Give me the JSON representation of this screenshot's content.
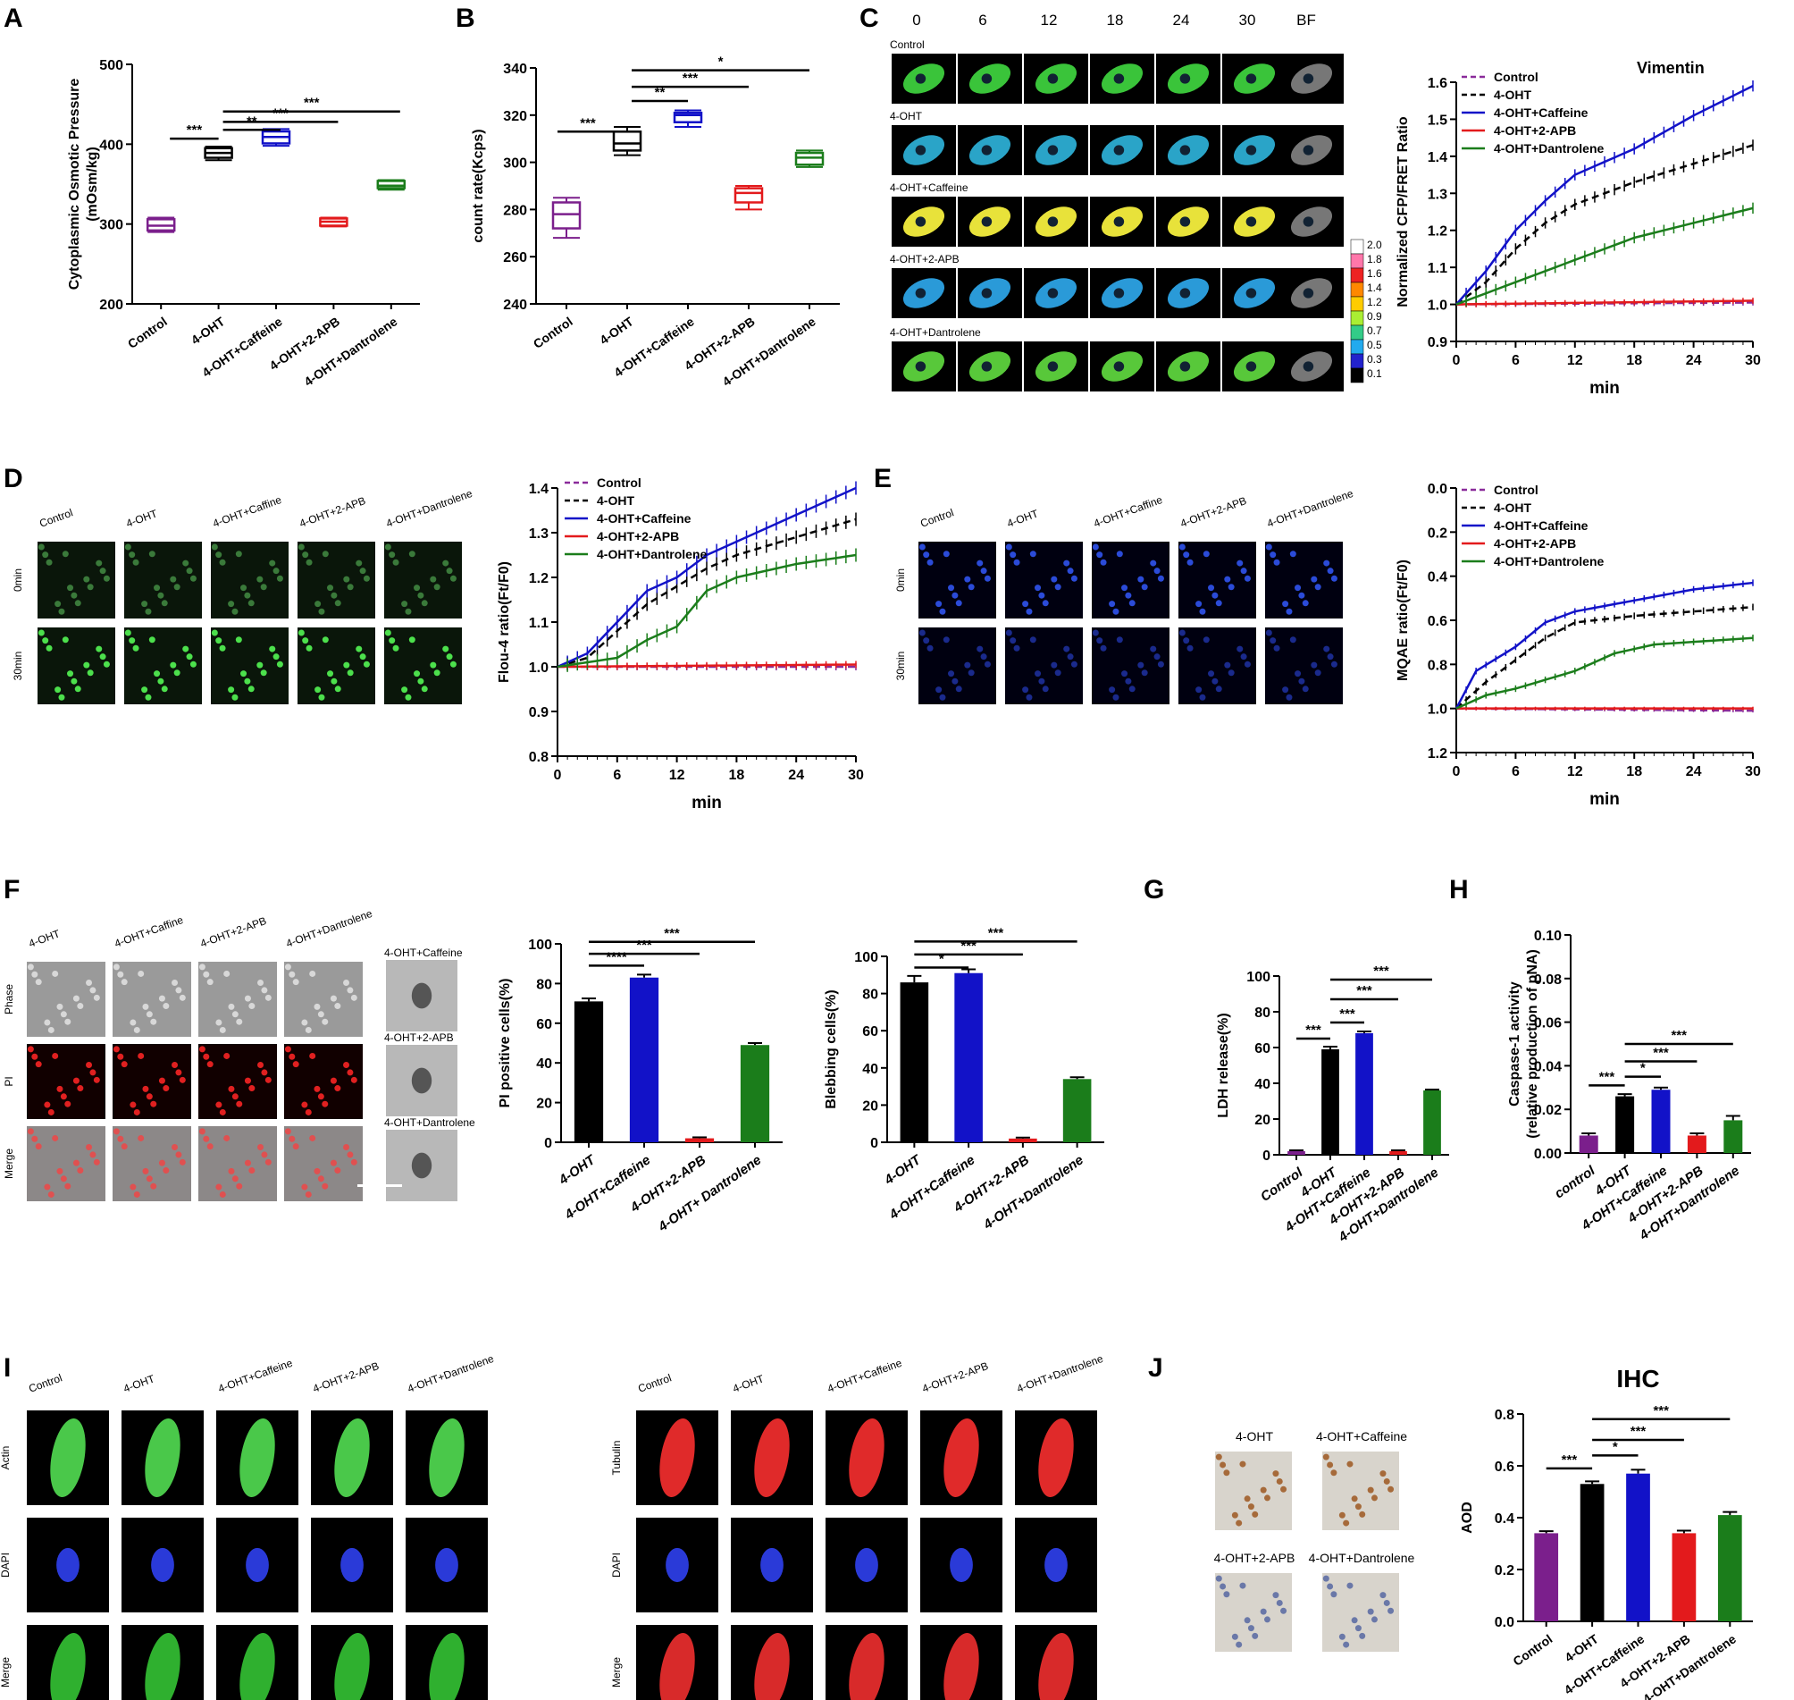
{
  "panel_labels": [
    "A",
    "B",
    "C",
    "D",
    "E",
    "F",
    "G",
    "H",
    "I",
    "J"
  ],
  "colors": {
    "purple": "#7b1f8c",
    "black": "#000000",
    "blue": "#1212c8",
    "red": "#e31a1c",
    "green": "#1b7d1b",
    "dashpurple": "#8a2b9a"
  },
  "groups5": [
    "Control",
    "4-OHT",
    "4-OHT+Caffeine",
    "4-OHT+2-APB",
    "4-OHT+Dantrolene"
  ],
  "groups4_F": [
    "4-OHT",
    "4-OHT+Caffeine",
    "4-OHT+2-APB",
    "4-OHT+ Dantrolene"
  ],
  "groups4_F2": [
    "4-OHT",
    "4-OHT+Caffeine",
    "4-OHT+2-APB",
    "4-OHT+Dantrolene"
  ],
  "groups5_H": [
    "control",
    "4-OHT",
    "4-OHT+Caffeine",
    "4-OHT+2-APB",
    "4-OHT+Dantrolene"
  ],
  "legend": [
    "Control",
    "4-OHT",
    "4-OHT+Caffeine",
    "4-OHT+2-APB",
    "4-OHT+Dantrolene"
  ],
  "micro": {
    "C_times": [
      "0",
      "6",
      "12",
      "18",
      "24",
      "30",
      "BF"
    ],
    "C_rows": [
      "Control",
      "4-OHT",
      "4-OHT+Caffeine",
      "4-OHT+2-APB",
      "4-OHT+Dantrolene"
    ],
    "C_scale": [
      "2.0",
      "1.8",
      "1.6",
      "1.4",
      "1.2",
      "0.9",
      "0.7",
      "0.5",
      "0.3",
      "0.1"
    ],
    "D_cols": [
      "Control",
      "4-OHT",
      "4-OHT+Caffine",
      "4-OHT+2-APB",
      "4-OHT+Dantrolene"
    ],
    "D_rows": [
      "0min",
      "30min"
    ],
    "F_cols": [
      "4-OHT",
      "4-OHT+Caffine",
      "4-OHT+2-APB",
      "4-OHT+Dantrolene"
    ],
    "F_rows": [
      "Phase",
      "PI",
      "Merge"
    ],
    "F_insets": [
      "4-OHT+Caffeine",
      "4-OHT+2-APB",
      "4-OHT+Dantrolene"
    ],
    "I_cols": [
      "Control",
      "4-OHT",
      "4-OHT+Caffeine",
      "4-OHT+2-APB",
      "4-OHT+Dantrolene"
    ],
    "I_rows1": [
      "Actin",
      "DAPI",
      "Merge"
    ],
    "I_rows2": [
      "Tubulin",
      "DAPI",
      "Merge"
    ],
    "J_labels": [
      "4-OHT",
      "4-OHT+Caffeine",
      "4-OHT+2-APB",
      "4-OHT+Dantrolene"
    ]
  },
  "chart_data": [
    {
      "id": "A",
      "type": "box",
      "ylabel": "Cytoplasmic Osmotic Pressure\n(mOsm/kg)",
      "ylim": [
        200,
        500
      ],
      "yticks": [
        200,
        300,
        400,
        500
      ],
      "categories": [
        "Control",
        "4-OHT",
        "4-OHT+Caffeine",
        "4-OHT+2-APB",
        "4-OHT+Dantrolene"
      ],
      "boxes": [
        {
          "min": 290,
          "q1": 292,
          "med": 298,
          "q3": 306,
          "max": 308
        },
        {
          "min": 380,
          "q1": 383,
          "med": 389,
          "q3": 395,
          "max": 397
        },
        {
          "min": 398,
          "q1": 401,
          "med": 409,
          "q3": 416,
          "max": 419
        },
        {
          "min": 297,
          "q1": 298,
          "med": 303,
          "q3": 307,
          "max": 308
        },
        {
          "min": 343,
          "q1": 345,
          "med": 348,
          "q3": 354,
          "max": 355
        }
      ],
      "sig": [
        "***",
        "**",
        "***",
        "***"
      ]
    },
    {
      "id": "B",
      "type": "box",
      "ylabel": "count rate(Kcps)",
      "ylim": [
        240,
        340
      ],
      "yticks": [
        240,
        260,
        280,
        300,
        320,
        340
      ],
      "categories": [
        "Control",
        "4-OHT",
        "4-OHT+Caffeine",
        "4-OHT+2-APB",
        "4-OHT+Dantrolene"
      ],
      "boxes": [
        {
          "min": 268,
          "q1": 272,
          "med": 278,
          "q3": 283,
          "max": 285
        },
        {
          "min": 303,
          "q1": 305,
          "med": 308,
          "q3": 313,
          "max": 315
        },
        {
          "min": 315,
          "q1": 317,
          "med": 320,
          "q3": 321,
          "max": 322
        },
        {
          "min": 280,
          "q1": 283,
          "med": 287,
          "q3": 289,
          "max": 290
        },
        {
          "min": 298,
          "q1": 299,
          "med": 302,
          "q3": 304,
          "max": 305
        }
      ],
      "sig": [
        "***",
        "**",
        "***",
        "*"
      ]
    },
    {
      "id": "C",
      "type": "line",
      "title": "Vimentin",
      "xlabel": "min",
      "ylabel": "Normalized CFP/FRET Ratio",
      "xlim": [
        0,
        30
      ],
      "ylim": [
        0.9,
        1.6
      ],
      "xticks": [
        0,
        6,
        12,
        18,
        24,
        30
      ],
      "yticks": [
        0.9,
        1.0,
        1.1,
        1.2,
        1.3,
        1.4,
        1.5,
        1.6
      ],
      "series": [
        {
          "name": "Control",
          "k": [
            [
              0,
              1.0
            ],
            [
              30,
              1.005
            ]
          ]
        },
        {
          "name": "4-OHT",
          "k": [
            [
              0,
              1.0
            ],
            [
              3,
              1.06
            ],
            [
              6,
              1.15
            ],
            [
              9,
              1.22
            ],
            [
              12,
              1.27
            ],
            [
              18,
              1.33
            ],
            [
              24,
              1.38
            ],
            [
              30,
              1.43
            ]
          ]
        },
        {
          "name": "4-OHT+Caffeine",
          "k": [
            [
              0,
              1.0
            ],
            [
              3,
              1.09
            ],
            [
              6,
              1.2
            ],
            [
              9,
              1.28
            ],
            [
              12,
              1.35
            ],
            [
              18,
              1.42
            ],
            [
              24,
              1.51
            ],
            [
              30,
              1.59
            ]
          ]
        },
        {
          "name": "4-OHT+2-APB",
          "k": [
            [
              0,
              1.0
            ],
            [
              30,
              1.01
            ]
          ]
        },
        {
          "name": "4-OHT+Dantrolene",
          "k": [
            [
              0,
              1.0
            ],
            [
              3,
              1.03
            ],
            [
              6,
              1.06
            ],
            [
              12,
              1.12
            ],
            [
              18,
              1.18
            ],
            [
              24,
              1.22
            ],
            [
              30,
              1.26
            ]
          ]
        }
      ]
    },
    {
      "id": "D",
      "type": "line",
      "xlabel": "min",
      "ylabel": "Flou-4 ratio(Ft/F0)",
      "xlim": [
        0,
        30
      ],
      "ylim": [
        0.8,
        1.4
      ],
      "xticks": [
        0,
        6,
        12,
        18,
        24,
        30
      ],
      "yticks": [
        0.8,
        0.9,
        1.0,
        1.1,
        1.2,
        1.3,
        1.4
      ],
      "series": [
        {
          "name": "Control",
          "k": [
            [
              0,
              1.0
            ],
            [
              30,
              1.0
            ]
          ]
        },
        {
          "name": "4-OHT",
          "k": [
            [
              0,
              1.0
            ],
            [
              3,
              1.02
            ],
            [
              6,
              1.08
            ],
            [
              9,
              1.14
            ],
            [
              12,
              1.18
            ],
            [
              15,
              1.22
            ],
            [
              18,
              1.25
            ],
            [
              24,
              1.29
            ],
            [
              30,
              1.33
            ]
          ]
        },
        {
          "name": "4-OHT+Caffeine",
          "k": [
            [
              0,
              1.0
            ],
            [
              3,
              1.03
            ],
            [
              6,
              1.1
            ],
            [
              9,
              1.17
            ],
            [
              12,
              1.2
            ],
            [
              15,
              1.25
            ],
            [
              18,
              1.28
            ],
            [
              24,
              1.34
            ],
            [
              30,
              1.4
            ]
          ]
        },
        {
          "name": "4-OHT+2-APB",
          "k": [
            [
              0,
              1.0
            ],
            [
              30,
              1.005
            ]
          ]
        },
        {
          "name": "4-OHT+Dantrolene",
          "k": [
            [
              0,
              1.0
            ],
            [
              6,
              1.02
            ],
            [
              9,
              1.06
            ],
            [
              12,
              1.09
            ],
            [
              15,
              1.17
            ],
            [
              18,
              1.2
            ],
            [
              24,
              1.23
            ],
            [
              30,
              1.25
            ]
          ]
        }
      ]
    },
    {
      "id": "E",
      "type": "line",
      "xlabel": "min",
      "ylabel": "MQAE ratio(Ft/F0)",
      "xlim": [
        0,
        30
      ],
      "ylim": [
        1.2,
        0.0
      ],
      "xticks": [
        0,
        6,
        12,
        18,
        24,
        30
      ],
      "yticks": [
        0.0,
        0.2,
        0.4,
        0.6,
        0.8,
        1.0,
        1.2
      ],
      "series": [
        {
          "name": "Control",
          "k": [
            [
              0,
              1.0
            ],
            [
              30,
              1.01
            ]
          ]
        },
        {
          "name": "4-OHT",
          "k": [
            [
              0,
              1.0
            ],
            [
              3,
              0.88
            ],
            [
              6,
              0.78
            ],
            [
              9,
              0.68
            ],
            [
              12,
              0.61
            ],
            [
              18,
              0.58
            ],
            [
              24,
              0.56
            ],
            [
              30,
              0.54
            ]
          ]
        },
        {
          "name": "4-OHT+Caffeine",
          "k": [
            [
              0,
              1.0
            ],
            [
              2,
              0.83
            ],
            [
              6,
              0.72
            ],
            [
              9,
              0.61
            ],
            [
              12,
              0.56
            ],
            [
              18,
              0.51
            ],
            [
              24,
              0.46
            ],
            [
              30,
              0.43
            ]
          ]
        },
        {
          "name": "4-OHT+2-APB",
          "k": [
            [
              0,
              1.0
            ],
            [
              30,
              1.0
            ]
          ]
        },
        {
          "name": "4-OHT+Dantrolene",
          "k": [
            [
              0,
              1.0
            ],
            [
              3,
              0.94
            ],
            [
              6,
              0.91
            ],
            [
              12,
              0.83
            ],
            [
              16,
              0.75
            ],
            [
              20,
              0.71
            ],
            [
              30,
              0.68
            ]
          ]
        }
      ]
    },
    {
      "id": "F1",
      "type": "bar",
      "ylabel": "PI positive cells(%)",
      "ylim": [
        0,
        100
      ],
      "yticks": [
        0,
        20,
        40,
        60,
        80,
        100
      ],
      "categories": [
        "4-OHT",
        "4-OHT+Caffeine",
        "4-OHT+2-APB",
        "4-OHT+ Dantrolene"
      ],
      "values": [
        71,
        83,
        2,
        49
      ],
      "errors": [
        1.5,
        1.5,
        0.5,
        1.0
      ],
      "sig": [
        "****",
        "***",
        "***"
      ]
    },
    {
      "id": "F2",
      "type": "bar",
      "ylabel": "Blebbing cells(%)",
      "ylim": [
        0,
        100
      ],
      "yticks": [
        0,
        20,
        40,
        60,
        80,
        100
      ],
      "categories": [
        "4-OHT",
        "4-OHT+Caffeine",
        "4-OHT+2-APB",
        "4-OHT+Dantrolene"
      ],
      "values": [
        86,
        91,
        2,
        34
      ],
      "errors": [
        3.5,
        2,
        0.5,
        1
      ],
      "sig": [
        "*",
        "***",
        "***"
      ]
    },
    {
      "id": "G",
      "type": "bar",
      "ylabel": "LDH release(%)",
      "ylim": [
        0,
        100
      ],
      "yticks": [
        0,
        20,
        40,
        60,
        80,
        100
      ],
      "categories": [
        "Control",
        "4-OHT",
        "4-OHT+Caffeine",
        "4-OHT+2-APB",
        "4-OHT+Dantrolene"
      ],
      "values": [
        2,
        59,
        68,
        2,
        36
      ],
      "errors": [
        0.5,
        1.5,
        1.0,
        0.5,
        0.5
      ],
      "sig": [
        "***",
        "***",
        "***",
        "***"
      ]
    },
    {
      "id": "H",
      "type": "bar",
      "ylabel": "Caspase-1 activity\n(relative production of pNA)",
      "ylim": [
        0,
        0.1
      ],
      "yticks": [
        0.0,
        0.02,
        0.04,
        0.06,
        0.08,
        0.1
      ],
      "categories": [
        "control",
        "4-OHT",
        "4-OHT+Caffeine",
        "4-OHT+2-APB",
        "4-OHT+Dantrolene"
      ],
      "values": [
        0.008,
        0.026,
        0.029,
        0.008,
        0.015
      ],
      "errors": [
        0.001,
        0.001,
        0.001,
        0.001,
        0.002
      ],
      "sig": [
        "***",
        "*",
        "***",
        "***"
      ]
    },
    {
      "id": "J",
      "type": "bar",
      "title": "IHC",
      "ylabel": "AOD",
      "ylim": [
        0,
        0.8
      ],
      "yticks": [
        0.0,
        0.2,
        0.4,
        0.6,
        0.8
      ],
      "categories": [
        "Control",
        "4-OHT",
        "4-OHT+Caffeine",
        "4-OHT+2-APB",
        "4-OHT+Dantrolene"
      ],
      "values": [
        0.34,
        0.53,
        0.57,
        0.34,
        0.41
      ],
      "errors": [
        0.008,
        0.01,
        0.015,
        0.01,
        0.012
      ],
      "sig": [
        "***",
        "*",
        "***",
        "***"
      ]
    }
  ]
}
